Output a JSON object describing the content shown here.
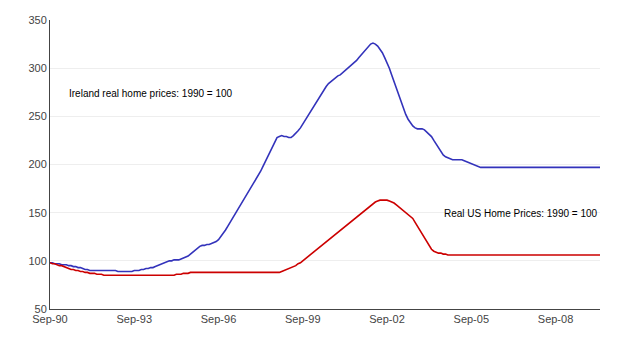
{
  "chart_data": {
    "type": "line",
    "categories": [
      "Sep-90",
      null,
      null,
      null,
      null,
      null,
      null,
      null,
      null,
      null,
      null,
      null,
      null,
      null,
      null,
      null,
      null,
      null,
      null,
      null,
      null,
      null,
      null,
      null,
      null,
      null,
      null,
      null,
      null,
      null,
      null,
      null,
      null,
      null,
      null,
      null,
      "Sep-93",
      null,
      null,
      null,
      null,
      null,
      null,
      null,
      null,
      null,
      null,
      null,
      null,
      null,
      null,
      null,
      null,
      null,
      null,
      null,
      null,
      null,
      null,
      null,
      null,
      null,
      null,
      null,
      null,
      null,
      null,
      null,
      null,
      null,
      null,
      null,
      "Sep-96",
      null,
      null,
      null,
      null,
      null,
      null,
      null,
      null,
      null,
      null,
      null,
      null,
      null,
      null,
      null,
      null,
      null,
      null,
      null,
      null,
      null,
      null,
      null,
      null,
      null,
      null,
      null,
      null,
      null,
      null,
      null,
      null,
      null,
      null,
      null,
      "Sep-99",
      null,
      null,
      null,
      null,
      null,
      null,
      null,
      null,
      null,
      null,
      null,
      null,
      null,
      null,
      null,
      null,
      null,
      null,
      null,
      null,
      null,
      null,
      null,
      null,
      null,
      null,
      null,
      null,
      null,
      null,
      null,
      null,
      null,
      null,
      null,
      "Sep-02",
      null,
      null,
      null,
      null,
      null,
      null,
      null,
      null,
      null,
      null,
      null,
      null,
      null,
      null,
      null,
      null,
      null,
      null,
      null,
      null,
      null,
      null,
      null,
      null,
      null,
      null,
      null,
      null,
      null,
      null,
      null,
      null,
      null,
      null,
      null,
      "Sep-05",
      null,
      null,
      null,
      null,
      null,
      null,
      null,
      null,
      null,
      null,
      null,
      null,
      null,
      null,
      null,
      null,
      null,
      null,
      null,
      null,
      null,
      null,
      null,
      null,
      null,
      null,
      null,
      null,
      null,
      null,
      null,
      null,
      null,
      null,
      null,
      "Sep-08",
      null,
      null,
      null,
      null,
      null,
      null,
      null,
      null,
      null,
      null,
      null,
      null,
      null,
      null,
      null,
      null,
      null,
      null,
      null
    ],
    "series": [
      {
        "color": "#3333bb",
        "values": [
          98,
          98,
          97,
          97,
          97,
          96,
          96,
          96,
          95,
          95,
          94,
          94,
          93,
          93,
          92,
          91,
          91,
          90,
          90,
          90,
          90,
          90,
          90,
          90,
          90,
          90,
          90,
          90,
          90,
          89,
          89,
          89,
          89,
          89,
          89,
          89,
          90,
          90,
          90,
          91,
          91,
          92,
          92,
          93,
          93,
          94,
          95,
          96,
          97,
          98,
          99,
          100,
          100,
          101,
          101,
          101,
          102,
          103,
          104,
          105,
          107,
          109,
          111,
          113,
          115,
          116,
          116,
          117,
          117,
          118,
          119,
          120,
          122,
          125,
          128,
          132,
          136,
          140,
          144,
          148,
          152,
          156,
          160,
          164,
          168,
          172,
          176,
          180,
          184,
          188,
          193,
          198,
          203,
          208,
          214,
          219,
          224,
          228,
          229,
          230,
          229,
          229,
          228,
          228,
          230,
          232,
          235,
          238,
          242,
          246,
          250,
          254,
          258,
          262,
          266,
          270,
          274,
          278,
          281,
          284,
          286,
          288,
          290,
          292,
          293,
          295,
          297,
          299,
          301,
          303,
          306,
          308,
          311,
          314,
          317,
          320,
          323,
          325,
          326,
          325,
          323,
          320,
          316,
          311,
          306,
          300,
          293,
          286,
          279,
          272,
          265,
          258,
          252,
          247,
          243,
          240,
          238,
          237,
          237,
          237,
          236,
          234,
          232,
          229,
          225,
          221,
          217,
          213,
          210,
          208,
          207,
          206,
          205,
          205,
          205,
          205,
          205,
          204,
          203,
          202,
          201,
          200,
          199,
          198,
          197,
          197,
          197,
          197,
          197,
          197,
          197,
          197,
          197,
          197,
          197,
          197,
          197,
          197,
          197,
          197,
          197,
          197,
          197,
          197,
          197,
          197,
          197,
          197,
          197,
          197,
          197,
          197,
          197,
          197,
          197,
          197,
          197,
          197,
          197,
          197,
          197,
          197,
          197,
          197,
          197,
          197,
          197,
          197,
          197,
          197,
          197,
          197,
          197,
          197,
          197,
          197
        ]
      },
      {
        "color": "#cc0000",
        "values": [
          98,
          97,
          97,
          96,
          95,
          95,
          94,
          93,
          92,
          91,
          91,
          90,
          90,
          89,
          89,
          88,
          88,
          87,
          87,
          87,
          86,
          86,
          86,
          85,
          85,
          85,
          85,
          85,
          85,
          85,
          85,
          85,
          85,
          85,
          85,
          85,
          85,
          85,
          85,
          85,
          85,
          85,
          85,
          85,
          85,
          85,
          85,
          85,
          85,
          85,
          85,
          85,
          85,
          85,
          86,
          86,
          86,
          87,
          87,
          87,
          88,
          88,
          88,
          88,
          88,
          88,
          88,
          88,
          88,
          88,
          88,
          88,
          88,
          88,
          88,
          88,
          88,
          88,
          88,
          88,
          88,
          88,
          88,
          88,
          88,
          88,
          88,
          88,
          88,
          88,
          88,
          88,
          88,
          88,
          88,
          88,
          88,
          88,
          88,
          89,
          90,
          91,
          92,
          93,
          94,
          95,
          97,
          98,
          100,
          102,
          104,
          106,
          108,
          110,
          112,
          114,
          116,
          118,
          120,
          122,
          124,
          126,
          128,
          130,
          132,
          134,
          136,
          138,
          140,
          142,
          144,
          146,
          148,
          150,
          152,
          154,
          156,
          158,
          160,
          161,
          162,
          163,
          163,
          163,
          163,
          162,
          161,
          160,
          158,
          156,
          154,
          152,
          150,
          148,
          146,
          144,
          140,
          136,
          132,
          128,
          124,
          120,
          116,
          112,
          110,
          109,
          108,
          108,
          107,
          107,
          106,
          106,
          106,
          106,
          106,
          106,
          106,
          106,
          106,
          106,
          106,
          106,
          106,
          106,
          106,
          106,
          106,
          106,
          106,
          106,
          106,
          106,
          106,
          106,
          106,
          106,
          106,
          106,
          106,
          106,
          106,
          106,
          106,
          106,
          106,
          106,
          106,
          106,
          106,
          106,
          106,
          106,
          106,
          106,
          106,
          106,
          106,
          106,
          106,
          106,
          106,
          106,
          106,
          106,
          106,
          106,
          106,
          106,
          106,
          106,
          106,
          106,
          106,
          106,
          106,
          106
        ]
      }
    ],
    "annotations": [
      "Ireland real home prices: 1990 = 100",
      "Real US Home Prices: 1990 = 100"
    ],
    "ylim": [
      50,
      350
    ],
    "yticks": [
      50,
      100,
      150,
      200,
      250,
      300,
      350
    ],
    "grid": true
  }
}
